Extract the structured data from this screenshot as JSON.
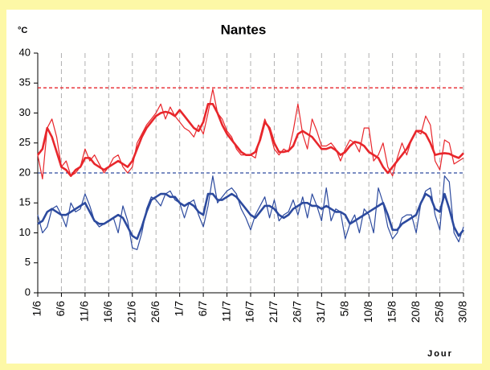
{
  "chart_data": {
    "type": "line",
    "title": "Nantes",
    "y_unit_label": "°C",
    "x_label": "Jour",
    "categories": [
      "1/6",
      null,
      null,
      null,
      null,
      "6/6",
      null,
      null,
      null,
      null,
      "11/6",
      null,
      null,
      null,
      null,
      "16/6",
      null,
      null,
      null,
      null,
      "21/6",
      null,
      null,
      null,
      null,
      "26/6",
      null,
      null,
      null,
      null,
      "1/7",
      null,
      null,
      null,
      null,
      "6/7",
      null,
      null,
      null,
      null,
      "11/7",
      null,
      null,
      null,
      null,
      "16/7",
      null,
      null,
      null,
      null,
      "21/7",
      null,
      null,
      null,
      null,
      "26/7",
      null,
      null,
      null,
      null,
      "31/7",
      null,
      null,
      null,
      null,
      "5/8",
      null,
      null,
      null,
      null,
      "10/8",
      null,
      null,
      null,
      null,
      "15/8",
      null,
      null,
      null,
      null,
      "20/8",
      null,
      null,
      null,
      null,
      "25/8",
      null,
      null,
      null,
      null,
      "30/8"
    ],
    "series": [
      {
        "color": "#e8262b",
        "linewidth": 1.2,
        "values": [
          23,
          19,
          27.5,
          29,
          26,
          21,
          22,
          19.5,
          20,
          21,
          24,
          22,
          23,
          21.5,
          20,
          21,
          22.5,
          23,
          21,
          20,
          21,
          25,
          26.5,
          28,
          29,
          30,
          31.5,
          29,
          31,
          29.5,
          28.5,
          27.5,
          27,
          26,
          28,
          26.5,
          30,
          34,
          30,
          29,
          27,
          26,
          24,
          23,
          23,
          23,
          22.5,
          26,
          29,
          27,
          24,
          23,
          24,
          23.5,
          27,
          31.5,
          26.5,
          24,
          29,
          27,
          24.5,
          24.5,
          25,
          24,
          22,
          24,
          25.5,
          25,
          23.5,
          27.5,
          27.5,
          22,
          23,
          25,
          21,
          19.5,
          22.5,
          25,
          23,
          25.5,
          27,
          26.5,
          29.5,
          28,
          22,
          20.5,
          25.5,
          25,
          21.5,
          22,
          22.5
        ]
      },
      {
        "color": "#e8262b",
        "linewidth": 2.6,
        "values": [
          23,
          24,
          27.5,
          26,
          23.5,
          21,
          20.5,
          19.5,
          20.5,
          21,
          22.5,
          22.5,
          21.5,
          21,
          20.5,
          21,
          21.5,
          22,
          21.5,
          21,
          22,
          24,
          26,
          27.5,
          28.5,
          29.5,
          30,
          30.2,
          30,
          29.5,
          30.5,
          29.5,
          28.5,
          27.5,
          27,
          28.5,
          31.5,
          31.5,
          30,
          28,
          26.5,
          25.5,
          24.5,
          23.5,
          23,
          23,
          23.5,
          25.5,
          28.5,
          27.5,
          25,
          23.5,
          23.5,
          23.7,
          24.5,
          26.5,
          27,
          26.5,
          26,
          25,
          24,
          24,
          24.3,
          23.8,
          23,
          23.5,
          24.5,
          25.2,
          25,
          24.5,
          23.5,
          23,
          22.5,
          21,
          20,
          21,
          22,
          23,
          24,
          25.5,
          27,
          27,
          26.5,
          25,
          23,
          23.2,
          23.3,
          23.2,
          22.8,
          22.5,
          23.3
        ]
      },
      {
        "color": "#2c4a9e",
        "linewidth": 1.2,
        "values": [
          13,
          10,
          11,
          14,
          14.5,
          13,
          11,
          15,
          13.5,
          14,
          16.5,
          14.5,
          12,
          11,
          11.5,
          12,
          12.5,
          10,
          14.5,
          12,
          7.5,
          7.2,
          10,
          14,
          16,
          15.5,
          14.5,
          16.5,
          17,
          15.5,
          15,
          12.5,
          15,
          15.5,
          13,
          11,
          14.5,
          19.5,
          15,
          16,
          17,
          17.5,
          16.5,
          14,
          12.5,
          10.5,
          13,
          14.5,
          16,
          12.5,
          15.5,
          12,
          13,
          13.5,
          15.5,
          13,
          16,
          12.5,
          16.5,
          14.5,
          12,
          17.5,
          12,
          14,
          13.5,
          9,
          11.5,
          13,
          10,
          14,
          13,
          10,
          17.5,
          15,
          11,
          9,
          10,
          12.5,
          13,
          13,
          10,
          15,
          17,
          17.5,
          13,
          10.5,
          19.5,
          18.5,
          10,
          8.5,
          11
        ]
      },
      {
        "color": "#2c4a9e",
        "linewidth": 2.6,
        "values": [
          11.5,
          12,
          13.5,
          14,
          13.5,
          13,
          13,
          13.5,
          14,
          14.5,
          15,
          13.5,
          12,
          11.5,
          11.5,
          12,
          12.5,
          13,
          12.5,
          11,
          9.5,
          9,
          11,
          13.5,
          15.5,
          16,
          16.5,
          16.5,
          16,
          16,
          15,
          14.5,
          15,
          14.5,
          13.5,
          13,
          16.5,
          16.5,
          15.5,
          15.5,
          16,
          16.5,
          16,
          15,
          14,
          13,
          12.5,
          13.5,
          14.5,
          14.5,
          14,
          13,
          12.5,
          13,
          14,
          14.5,
          15,
          15,
          14.5,
          14.5,
          14,
          14.5,
          14,
          13.5,
          13.5,
          13,
          11.5,
          12,
          12.5,
          13,
          13.5,
          14,
          14.5,
          15,
          13,
          10.5,
          10.5,
          11.5,
          12,
          12.5,
          13,
          15,
          16.5,
          16,
          14,
          13.5,
          16.5,
          14,
          11,
          9.5,
          10.5
        ]
      }
    ],
    "reference_lines": [
      {
        "value": 34.2,
        "color": "#e8262b"
      },
      {
        "value": 20,
        "color": "#2c4a9e"
      }
    ],
    "ylim": [
      0,
      40
    ],
    "yticks": [
      0,
      5,
      10,
      15,
      20,
      25,
      30,
      35,
      40
    ],
    "x_grid": true
  }
}
